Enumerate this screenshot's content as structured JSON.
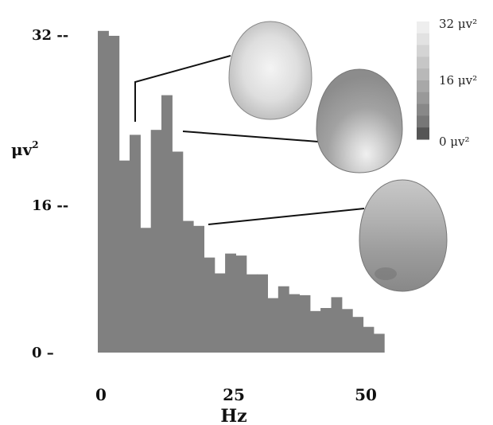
{
  "chart_data": {
    "type": "bar",
    "x_label": "Hz",
    "y_label_base": "μv",
    "y_label_exp": "2",
    "y_ticks": [
      {
        "value": 32,
        "label": "32 --"
      },
      {
        "value": 16,
        "label": "16 --"
      },
      {
        "value": 0,
        "label": "0 –"
      }
    ],
    "x_ticks": [
      0,
      25,
      50
    ],
    "xlim": [
      0,
      55
    ],
    "ylim": [
      0,
      32
    ],
    "bin_width_hz": 2,
    "bins": [
      {
        "start": 0,
        "value": 32.5
      },
      {
        "start": 2,
        "value": 32.0
      },
      {
        "start": 4,
        "value": 19.4
      },
      {
        "start": 6,
        "value": 22.0
      },
      {
        "start": 8,
        "value": 12.6
      },
      {
        "start": 10,
        "value": 22.5
      },
      {
        "start": 12,
        "value": 26.0
      },
      {
        "start": 14,
        "value": 20.3
      },
      {
        "start": 16,
        "value": 13.3
      },
      {
        "start": 18,
        "value": 12.8
      },
      {
        "start": 20,
        "value": 9.6
      },
      {
        "start": 22,
        "value": 8.0
      },
      {
        "start": 24,
        "value": 10.0
      },
      {
        "start": 26,
        "value": 9.8
      },
      {
        "start": 28,
        "value": 7.9
      },
      {
        "start": 30,
        "value": 7.9
      },
      {
        "start": 32,
        "value": 5.5
      },
      {
        "start": 34,
        "value": 6.7
      },
      {
        "start": 36,
        "value": 5.9
      },
      {
        "start": 38,
        "value": 5.8
      },
      {
        "start": 40,
        "value": 4.2
      },
      {
        "start": 42,
        "value": 4.5
      },
      {
        "start": 44,
        "value": 5.6
      },
      {
        "start": 46,
        "value": 4.4
      },
      {
        "start": 48,
        "value": 3.6
      },
      {
        "start": 50,
        "value": 2.6
      },
      {
        "start": 52,
        "value": 1.9
      }
    ],
    "colors": {
      "bar": "#808080",
      "line": "#111111"
    },
    "maps": [
      {
        "freq": 6,
        "level": 0.85,
        "note": "scalp map, mostly light gray"
      },
      {
        "freq": 14,
        "level": 0.45,
        "note": "scalp map, gray with light bottom"
      },
      {
        "freq": 19,
        "level": 0.5,
        "note": "scalp map, gray"
      }
    ],
    "colorbar": {
      "labels": [
        "32 μv²",
        "16 μv²",
        "0 μv²"
      ],
      "values": [
        32,
        16,
        0
      ],
      "steps": 10,
      "colors": [
        "#eeeeee",
        "#e2e2e2",
        "#d4d4d4",
        "#c6c6c6",
        "#b8b8b8",
        "#a8a8a8",
        "#999999",
        "#888888",
        "#777777",
        "#555555"
      ]
    }
  }
}
